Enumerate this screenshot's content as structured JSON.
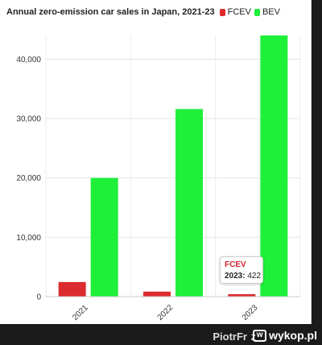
{
  "colors": {
    "FCEV": "#dc2b2f",
    "BEV": "#1ef03a",
    "grid": "#e4e4e4",
    "axis_text": "#333333",
    "background": "#ffffff"
  },
  "chart_data": {
    "type": "bar",
    "title": "Annual zero-emission car sales in Japan, 2021-23",
    "categories": [
      "2021",
      "2022",
      "2023"
    ],
    "series": [
      {
        "name": "FCEV",
        "values": [
          2460,
          850,
          422
        ]
      },
      {
        "name": "BEV",
        "values": [
          20000,
          31600,
          44000
        ]
      }
    ],
    "xlabel": "",
    "ylabel": "",
    "ylim": [
      0,
      44000
    ],
    "yticks": [
      0,
      10000,
      20000,
      30000,
      40000
    ],
    "ytick_labels": [
      "0",
      "10,000",
      "20,000",
      "30,000",
      "40,000"
    ],
    "grid": true,
    "legend_position": "top",
    "tooltip": {
      "series": "FCEV",
      "category": "2023",
      "value": "422"
    }
  },
  "footer": {
    "username": "PiotrFr",
    "separator": "z",
    "logo_icon": "wykop-w-icon",
    "logo_mark": "w",
    "logo_text": "wykop.pl"
  }
}
